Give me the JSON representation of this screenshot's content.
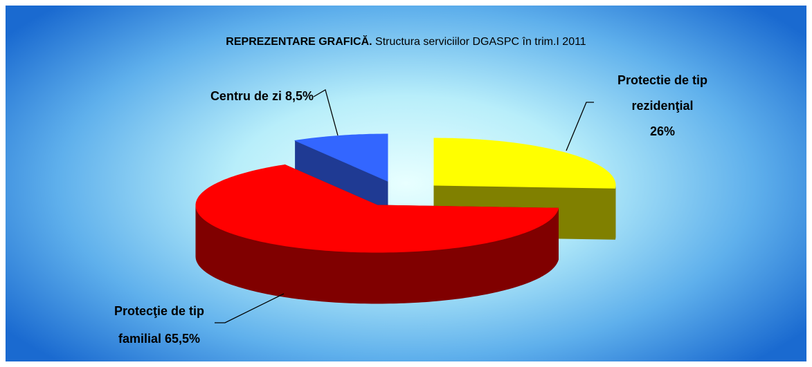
{
  "chart_data": {
    "type": "pie3d",
    "title": "REPREZENTARE GRAFICĂ.",
    "subtitle": "Structura serviciilor DGASPC în trim.I 2011",
    "categories": [
      "Protectie de tip rezidenţial",
      "Protecţie de tip familial",
      "Centru de zi"
    ],
    "values": [
      26,
      65.5,
      8.5
    ],
    "value_labels": [
      "26%",
      "65,5%",
      "8,5%"
    ],
    "colors": [
      "#ffff00",
      "#ff0000",
      "#3366ff"
    ],
    "side_colors": [
      "#808000",
      "#800000",
      "#1f3a93"
    ]
  }
}
